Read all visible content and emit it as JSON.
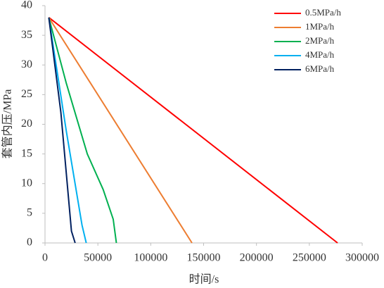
{
  "chart_data": {
    "type": "line",
    "xlabel": "时间/s",
    "ylabel": "套管内压/MPa",
    "xlim": [
      0,
      300000
    ],
    "xticks": [
      0,
      50000,
      100000,
      150000,
      200000,
      250000,
      300000
    ],
    "ylim": [
      0,
      40
    ],
    "yticks": [
      0,
      5,
      10,
      15,
      20,
      25,
      30,
      35,
      40
    ],
    "grid": false,
    "legend": "upper right",
    "series": [
      {
        "name": "0.5MPa/h",
        "color": "#ff0000",
        "x": [
          3600,
          276700
        ],
        "values": [
          38,
          0
        ]
      },
      {
        "name": "1MPa/h",
        "color": "#ed7d31",
        "x": [
          3600,
          139000
        ],
        "values": [
          38,
          0
        ]
      },
      {
        "name": "2MPa/h",
        "color": "#00b050",
        "x": [
          3600,
          20000,
          40000,
          55000,
          64500,
          67500
        ],
        "values": [
          38,
          27,
          15,
          9,
          4,
          0
        ]
      },
      {
        "name": "4MPa/h",
        "color": "#00b0f0",
        "x": [
          3600,
          20000,
          35000,
          39000
        ],
        "values": [
          38,
          19,
          3,
          0
        ]
      },
      {
        "name": "6MPa/h",
        "color": "#002060",
        "x": [
          3600,
          15000,
          25000,
          28500
        ],
        "values": [
          38,
          22,
          2,
          0
        ]
      }
    ]
  }
}
